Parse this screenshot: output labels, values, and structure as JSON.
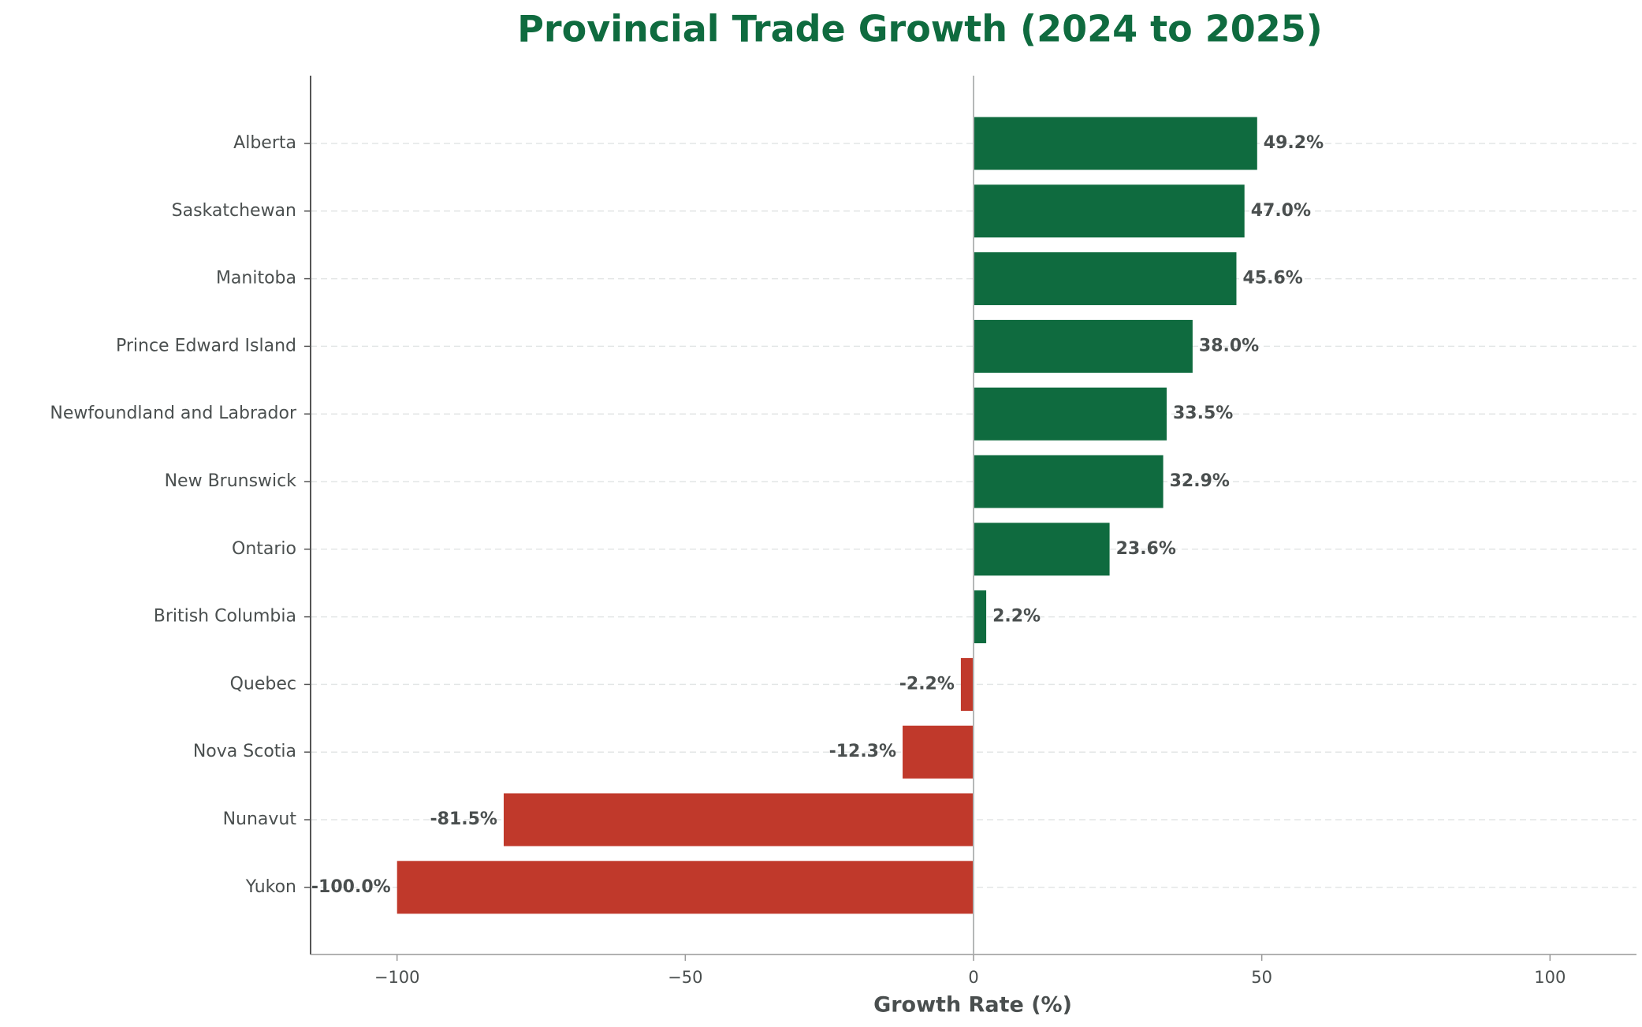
{
  "chart_data": {
    "type": "hbar",
    "title": "Provincial Trade Growth (2024 to 2025)",
    "x_label": "Growth Rate (%)",
    "categories": [
      "Alberta",
      "Saskatchewan",
      "Manitoba",
      "Prince Edward Island",
      "Newfoundland and Labrador",
      "New Brunswick",
      "Ontario",
      "British Columbia",
      "Quebec",
      "Nova Scotia",
      "Nunavut",
      "Yukon"
    ],
    "values": [
      49.2,
      47.0,
      45.6,
      38.0,
      33.5,
      32.9,
      23.6,
      2.2,
      -2.2,
      -12.3,
      -81.5,
      -100.0
    ],
    "value_labels": [
      "49.2%",
      "47.0%",
      "45.6%",
      "38.0%",
      "33.5%",
      "32.9%",
      "23.6%",
      "2.2%",
      "-2.2%",
      "-12.3%",
      "-81.5%",
      "-100.0%"
    ],
    "positive_color": "#0f6b3f",
    "negative_color": "#c0392b",
    "xlim": [
      -115,
      115
    ],
    "xticks": [
      {
        "value": -100,
        "label": "−100"
      },
      {
        "value": -50,
        "label": "−50"
      },
      0,
      50,
      100
    ],
    "grid": true
  }
}
